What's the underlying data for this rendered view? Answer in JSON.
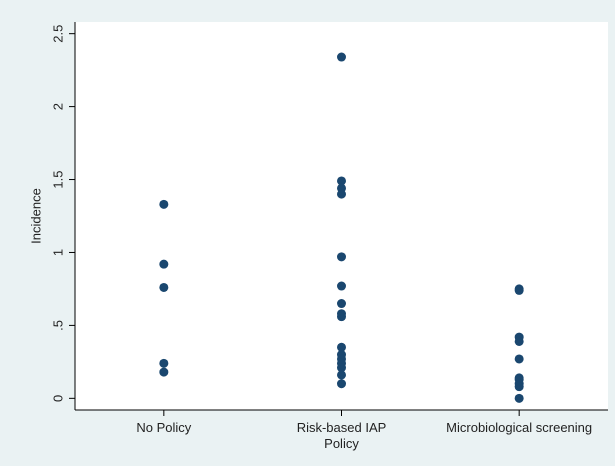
{
  "chart_data": {
    "type": "strip",
    "y_label": "Incidence",
    "categories": [
      "No Policy",
      "Risk-based IAP Policy",
      "Microbiological screening"
    ],
    "values": [
      [
        1.33,
        0.92,
        0.76,
        0.24,
        0.18
      ],
      [
        2.34,
        1.49,
        1.44,
        1.4,
        0.97,
        0.77,
        0.65,
        0.58,
        0.56,
        0.35,
        0.3,
        0.27,
        0.24,
        0.21,
        0.16,
        0.1
      ],
      [
        0.75,
        0.74,
        0.42,
        0.39,
        0.27,
        0.14,
        0.13,
        0.1,
        0.08,
        0
      ]
    ],
    "color": "#1a476f",
    "ylim": [
      -0.08,
      2.58
    ],
    "yticks": [
      0,
      {
        "value": 0.5,
        "label": ".5"
      },
      1,
      1.5,
      2,
      2.5
    ]
  }
}
